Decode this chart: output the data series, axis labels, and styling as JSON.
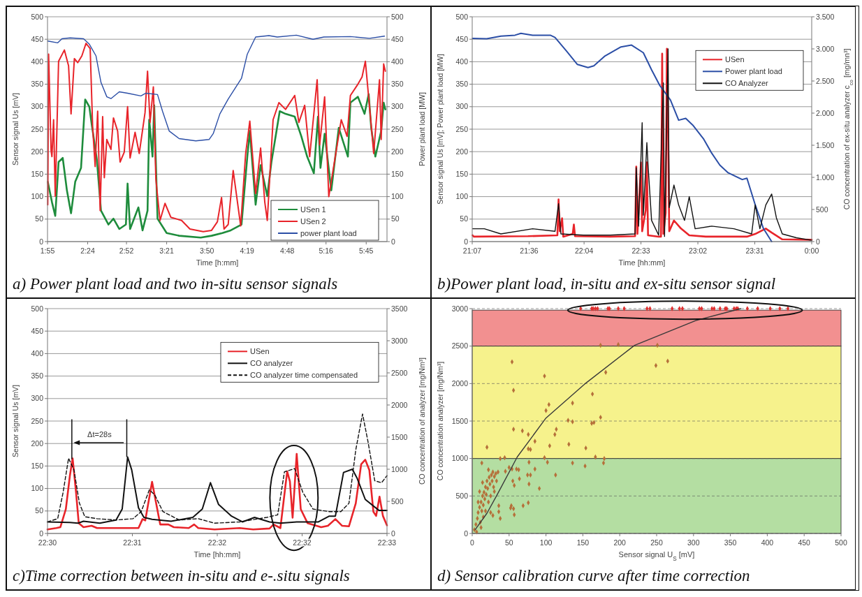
{
  "chart_data": [
    {
      "type": "line",
      "title": "a) Power plant load and two in-situ sensor signals",
      "xlabel": "Time [h:mm]",
      "ylabel": "Sensor signal Us [mV]",
      "y2label": "Power plant load [MW]",
      "xlim": [
        1.9167,
        6.0
      ],
      "xticks": [
        {
          "value": 1.9167,
          "label": "1:55"
        },
        {
          "value": 2.4,
          "label": "2:24"
        },
        {
          "value": 2.8667,
          "label": "2:52"
        },
        {
          "value": 3.35,
          "label": "3:21"
        },
        {
          "value": 3.8333,
          "label": "3:50"
        },
        {
          "value": 4.3167,
          "label": "4:19"
        },
        {
          "value": 4.8,
          "label": "4:48"
        },
        {
          "value": 5.2667,
          "label": "5:16"
        },
        {
          "value": 5.75,
          "label": "5:45"
        }
      ],
      "ylim": [
        0,
        500
      ],
      "yticks": [
        0,
        50,
        100,
        150,
        200,
        250,
        300,
        350,
        400,
        450,
        500
      ],
      "y2lim": [
        0,
        500
      ],
      "y2ticks": [
        0,
        50,
        100,
        150,
        200,
        250,
        300,
        350,
        400,
        450,
        500
      ],
      "grid": "y",
      "legend": "bottom right",
      "series": [
        {
          "name": "USen 1",
          "color": "#1e8c3c",
          "x": [
            1.92,
            1.97,
            2.01,
            2.05,
            2.1,
            2.15,
            2.2,
            2.25,
            2.32,
            2.37,
            2.42,
            2.45,
            2.51,
            2.56,
            2.65,
            2.71,
            2.78,
            2.86,
            2.88,
            2.91,
            3.01,
            3.06,
            3.12,
            3.14,
            3.18,
            3.2,
            3.24,
            3.35,
            3.5,
            3.76,
            3.89,
            4.02,
            4.12,
            4.25,
            4.32,
            4.35,
            4.42,
            4.48,
            4.56,
            4.61,
            4.71,
            4.78,
            4.89,
            4.97,
            5.04,
            5.12,
            5.17,
            5.2,
            5.25,
            5.33,
            5.42,
            5.53,
            5.56,
            5.65,
            5.73,
            5.78,
            5.81,
            5.86,
            5.93,
            5.96,
            5.98
          ],
          "values": [
            133,
            88,
            57,
            177,
            186,
            114,
            63,
            133,
            164,
            316,
            300,
            259,
            183,
            69,
            38,
            51,
            28,
            38,
            129,
            28,
            76,
            25,
            69,
            271,
            189,
            303,
            51,
            19,
            13,
            9,
            13,
            19,
            25,
            38,
            189,
            246,
            82,
            170,
            101,
            177,
            290,
            284,
            278,
            234,
            189,
            152,
            278,
            164,
            240,
            114,
            253,
            189,
            309,
            322,
            284,
            328,
            253,
            189,
            246,
            309,
            294
          ]
        },
        {
          "name": "USen 2",
          "color": "#e8242a",
          "x": [
            1.92,
            1.93,
            1.96,
            1.97,
            1.99,
            2.01,
            2.05,
            2.12,
            2.17,
            2.2,
            2.24,
            2.28,
            2.33,
            2.38,
            2.43,
            2.46,
            2.49,
            2.52,
            2.55,
            2.58,
            2.6,
            2.63,
            2.68,
            2.71,
            2.76,
            2.79,
            2.84,
            2.88,
            2.91,
            2.97,
            3.02,
            3.09,
            3.12,
            3.15,
            3.19,
            3.22,
            3.27,
            3.33,
            3.4,
            3.53,
            3.63,
            3.79,
            3.89,
            3.96,
            4.01,
            4.04,
            4.09,
            4.15,
            4.24,
            4.3,
            4.35,
            4.42,
            4.48,
            4.53,
            4.56,
            4.63,
            4.7,
            4.78,
            4.89,
            4.94,
            5.01,
            5.07,
            5.16,
            5.19,
            5.25,
            5.3,
            5.45,
            5.52,
            5.56,
            5.65,
            5.7,
            5.74,
            5.81,
            5.84,
            5.91,
            5.93,
            5.96,
            5.98
          ],
          "values": [
            82,
            417,
            202,
            189,
            271,
            101,
            401,
            426,
            391,
            284,
            407,
            398,
            413,
            441,
            429,
            253,
            167,
            290,
            69,
            278,
            142,
            227,
            205,
            275,
            246,
            177,
            199,
            300,
            186,
            243,
            196,
            287,
            379,
            265,
            344,
            139,
            47,
            85,
            54,
            47,
            28,
            22,
            25,
            44,
            98,
            28,
            38,
            158,
            35,
            196,
            268,
            107,
            208,
            88,
            47,
            271,
            309,
            294,
            325,
            265,
            303,
            189,
            360,
            215,
            322,
            100,
            271,
            234,
            325,
            350,
            366,
            401,
            259,
            196,
            360,
            227,
            395,
            379
          ]
        },
        {
          "name": "power plant load",
          "color": "#2b4ea6",
          "axis": "y2",
          "x": [
            1.92,
            2.04,
            2.09,
            2.19,
            2.35,
            2.42,
            2.5,
            2.56,
            2.63,
            2.68,
            2.78,
            2.88,
            3.04,
            3.1,
            3.24,
            3.3,
            3.38,
            3.5,
            3.7,
            3.86,
            3.91,
            3.99,
            4.09,
            4.25,
            4.32,
            4.42,
            4.58,
            4.68,
            4.91,
            5.11,
            5.24,
            5.56,
            5.79,
            5.97
          ],
          "values": [
            446,
            442,
            451,
            453,
            451,
            439,
            413,
            354,
            322,
            318,
            333,
            330,
            324,
            330,
            327,
            290,
            246,
            229,
            224,
            227,
            240,
            284,
            317,
            363,
            417,
            455,
            458,
            455,
            459,
            450,
            455,
            456,
            452,
            457
          ]
        }
      ]
    },
    {
      "type": "line",
      "title": "b)Power plant load, in-situ and ex-situ sensor signal",
      "xlabel": "Time [hh:mm]",
      "ylabel": "Sensor signal Us [mV]; Power plant load [MW]",
      "y2label": "CO concentration of ex-situ analyzer c$_{co}$ [mg/mn³]",
      "xlim": [
        21.1167,
        24
      ],
      "xticks": [
        {
          "value": 21.1167,
          "label": "21:07"
        },
        {
          "value": 21.6,
          "label": "21:36"
        },
        {
          "value": 22.0667,
          "label": "22:04"
        },
        {
          "value": 22.55,
          "label": "22:33"
        },
        {
          "value": 23.0333,
          "label": "23:02"
        },
        {
          "value": 23.5167,
          "label": "23:31"
        },
        {
          "value": 24,
          "label": "0:00"
        }
      ],
      "ylim": [
        0,
        500
      ],
      "yticks": [
        0,
        50,
        100,
        150,
        200,
        250,
        300,
        350,
        400,
        450,
        500
      ],
      "y2lim": [
        0,
        3500
      ],
      "y2ticks": [
        0,
        500,
        {
          "value": 1000,
          "label": "1.000"
        },
        {
          "value": 1500,
          "label": "1.500"
        },
        {
          "value": 2000,
          "label": "2.000"
        },
        {
          "value": 2500,
          "label": "2.500"
        },
        {
          "value": 3000,
          "label": "3.000"
        },
        {
          "value": 3500,
          "label": "3.500"
        }
      ],
      "grid": "y",
      "legend": "top right",
      "series": [
        {
          "name": "USen",
          "color": "#e8242a",
          "x": [
            21.12,
            21.13,
            21.59,
            21.84,
            21.85,
            21.86,
            21.88,
            21.89,
            21.97,
            21.98,
            21.99,
            22.29,
            22.5,
            22.51,
            22.52,
            22.55,
            22.56,
            22.59,
            22.6,
            22.61,
            22.7,
            22.72,
            22.73,
            22.74,
            22.76,
            22.77,
            22.78,
            22.79,
            22.83,
            22.89,
            22.96,
            23.1,
            23.45,
            23.52,
            23.61,
            23.66,
            23.75,
            24.0
          ],
          "values": [
            14,
            11,
            12,
            14,
            94,
            23,
            52,
            11,
            17,
            38,
            12,
            11,
            12,
            167,
            17,
            176,
            23,
            70,
            176,
            14,
            11,
            11,
            418,
            17,
            64,
            429,
            253,
            23,
            47,
            29,
            14,
            11,
            11,
            17,
            29,
            20,
            5,
            4
          ]
        },
        {
          "name": "Power plant load",
          "color": "#2b4ea6",
          "x": [
            21.12,
            21.24,
            21.36,
            21.48,
            21.53,
            21.63,
            21.78,
            21.82,
            21.92,
            22.01,
            22.1,
            22.15,
            22.24,
            22.38,
            22.47,
            22.57,
            22.64,
            22.71,
            22.8,
            22.87,
            22.93,
            22.99,
            23.08,
            23.15,
            23.22,
            23.29,
            23.41,
            23.45,
            23.52,
            23.59,
            23.66
          ],
          "values": [
            452,
            451,
            457,
            459,
            463,
            459,
            459,
            454,
            423,
            394,
            387,
            391,
            412,
            433,
            437,
            420,
            382,
            347,
            315,
            270,
            274,
            259,
            229,
            197,
            170,
            153,
            138,
            141,
            82,
            29,
            0
          ]
        },
        {
          "name": "CO Analyzer",
          "color": "#111111",
          "axis": "y2",
          "x": [
            21.12,
            21.22,
            21.36,
            21.63,
            21.82,
            21.85,
            21.87,
            22.06,
            22.29,
            22.5,
            22.51,
            22.53,
            22.56,
            22.57,
            22.6,
            22.61,
            22.64,
            22.7,
            22.74,
            22.75,
            22.78,
            22.79,
            22.83,
            22.87,
            22.92,
            22.96,
            23.01,
            23.15,
            23.34,
            23.49,
            23.52,
            23.56,
            23.61,
            23.66,
            23.7,
            23.75,
            23.87,
            24.0
          ],
          "values": [
            200,
            200,
            120,
            200,
            160,
            590,
            120,
            100,
            100,
            120,
            1150,
            240,
            1850,
            410,
            1540,
            1190,
            330,
            100,
            2470,
            80,
            3000,
            530,
            880,
            570,
            330,
            700,
            200,
            240,
            200,
            120,
            570,
            200,
            570,
            740,
            370,
            120,
            60,
            20
          ]
        }
      ]
    },
    {
      "type": "line",
      "title": "c)Time correction between in-situ and e-.situ signals",
      "xlabel": "Time [hh:mm]",
      "ylabel": "Sensor signal Us [mV]",
      "y2label": "CO concentration of analyzer [mg/Nm³]",
      "xlim": [
        22.5,
        22.55
      ],
      "xticks": [
        {
          "value": 22.5,
          "label": "22:30"
        },
        {
          "value": 22.5125,
          "label": "22:31"
        },
        {
          "value": 22.525,
          "label": "22:32"
        },
        {
          "value": 22.5375,
          "label": "22:32"
        },
        {
          "value": 22.55,
          "label": "22:33"
        }
      ],
      "ylim": [
        0,
        500
      ],
      "yticks": [
        0,
        50,
        100,
        150,
        200,
        250,
        300,
        350,
        400,
        450,
        500
      ],
      "y2lim": [
        0,
        3500
      ],
      "y2ticks": [
        0,
        500,
        1000,
        1500,
        2000,
        2500,
        3000,
        3500
      ],
      "grid": "y",
      "legend": "top right",
      "annotations": [
        "Δt=28s"
      ],
      "series": [
        {
          "name": "USen",
          "color": "#e8242a",
          "x": [
            22.5,
            22.5013,
            22.5019,
            22.5027,
            22.5033,
            22.5037,
            22.5042,
            22.5046,
            22.5053,
            22.5065,
            22.5073,
            22.5134,
            22.514,
            22.5144,
            22.5154,
            22.516,
            22.5166,
            22.5178,
            22.5186,
            22.5208,
            22.5216,
            22.5222,
            22.5246,
            22.5283,
            22.5303,
            22.5327,
            22.5333,
            22.5343,
            22.5353,
            22.5357,
            22.5361,
            22.5367,
            22.5373,
            22.5383,
            22.5403,
            22.5413,
            22.5424,
            22.5434,
            22.5444,
            22.5454,
            22.5462,
            22.5468,
            22.5474,
            22.548,
            22.5484,
            22.5489,
            22.5494,
            22.55
          ],
          "values": [
            9,
            12,
            14,
            54,
            129,
            167,
            92,
            23,
            14,
            17,
            12,
            12,
            32,
            29,
            115,
            67,
            20,
            20,
            14,
            12,
            20,
            12,
            9,
            12,
            9,
            11,
            20,
            12,
            138,
            116,
            35,
            177,
            54,
            23,
            14,
            17,
            32,
            17,
            16,
            67,
            154,
            164,
            141,
            48,
            39,
            82,
            39,
            18
          ]
        },
        {
          "name": "CO analyzer",
          "color": "#111111",
          "axis": "y2",
          "x": [
            22.5,
            22.5033,
            22.5045,
            22.5053,
            22.5077,
            22.5101,
            22.511,
            22.5118,
            22.5124,
            22.5134,
            22.5142,
            22.5154,
            22.5182,
            22.5214,
            22.5228,
            22.524,
            22.5252,
            22.5271,
            22.5287,
            22.5305,
            22.5327,
            22.5343,
            22.5367,
            22.5399,
            22.5415,
            22.5424,
            22.5436,
            22.5449,
            22.5456,
            22.5468,
            22.5488,
            22.55
          ],
          "values": [
            180,
            170,
            160,
            190,
            160,
            210,
            380,
            1190,
            990,
            400,
            250,
            220,
            190,
            250,
            380,
            790,
            450,
            270,
            180,
            250,
            180,
            160,
            180,
            180,
            270,
            270,
            950,
            1000,
            860,
            530,
            360,
            360
          ]
        },
        {
          "name": "CO analyzer time compensated",
          "color": "#111111",
          "axis": "y2",
          "line_style": "dashed",
          "x": [
            22.5,
            22.5015,
            22.5023,
            22.5031,
            22.5039,
            22.5047,
            22.5055,
            22.5073,
            22.5101,
            22.5126,
            22.5138,
            22.515,
            22.5158,
            22.517,
            22.5194,
            22.5222,
            22.5246,
            22.5283,
            22.5323,
            22.5339,
            22.5349,
            22.5364,
            22.5376,
            22.5391,
            22.5415,
            22.5432,
            22.5444,
            22.5454,
            22.5464,
            22.5472,
            22.5482,
            22.5492,
            22.55
          ],
          "values": [
            180,
            230,
            640,
            1170,
            990,
            470,
            260,
            230,
            210,
            230,
            340,
            680,
            600,
            340,
            210,
            230,
            160,
            180,
            250,
            290,
            960,
            1010,
            640,
            380,
            340,
            340,
            470,
            1300,
            1860,
            1430,
            820,
            790,
            900
          ]
        }
      ]
    },
    {
      "type": "scatter",
      "title": "d) Sensor calibration curve after time correction",
      "xlabel": "Sensor signal U$_{S}$ [mV]",
      "ylabel": "CO concentration analyzer [mg/Nm³]",
      "xlim": [
        0,
        500
      ],
      "xticks": [
        0,
        50,
        100,
        150,
        200,
        250,
        300,
        350,
        400,
        450,
        500
      ],
      "ylim": [
        0,
        3000
      ],
      "yticks": [
        0,
        500,
        1000,
        1500,
        2000,
        2500,
        3000
      ],
      "grid": "y",
      "legend": false,
      "bands": [
        {
          "axis": "y",
          "from": 0,
          "to": 1000,
          "color": "#b4dea2"
        },
        {
          "axis": "y",
          "from": 1000,
          "to": 2500,
          "color": "#f6f28c"
        },
        {
          "axis": "y",
          "from": 2500,
          "to": 2980,
          "color": "#f29090"
        }
      ],
      "series": [
        {
          "color": "#b5703a",
          "marker": "diamond",
          "x": [
            54,
            56,
            98,
            56,
            68,
            76,
            85,
            100,
            104,
            112,
            114,
            105,
            76,
            79,
            130,
            136,
            136,
            131,
            154,
            163,
            162,
            165,
            174,
            181,
            167,
            179,
            178,
            153,
            136,
            102,
            98,
            77,
            249,
            265,
            174,
            198,
            251,
            20,
            13,
            44,
            38,
            85,
            75,
            79,
            113,
            91,
            77,
            57,
            64,
            55,
            69,
            76,
            56,
            52,
            53,
            57,
            38,
            36,
            54,
            60,
            63,
            45,
            50,
            3,
            5,
            7,
            8,
            10,
            11,
            12,
            13,
            14,
            15,
            16,
            17,
            18,
            19,
            20,
            21,
            22,
            23,
            24,
            25,
            26,
            27,
            28,
            29,
            30,
            32,
            33,
            35,
            22,
            14,
            10,
            8,
            18,
            25,
            15,
            12,
            6,
            30,
            36,
            28
          ],
          "values": [
            2290,
            1910,
            2100,
            1390,
            1370,
            1320,
            1230,
            1640,
            1720,
            1320,
            1390,
            1170,
            1130,
            1120,
            1510,
            1740,
            1490,
            1190,
            1140,
            1860,
            1470,
            1480,
            1550,
            2150,
            1020,
            1000,
            940,
            900,
            940,
            950,
            1010,
            950,
            2240,
            2300,
            2510,
            2520,
            2510,
            1150,
            940,
            1010,
            1000,
            860,
            780,
            780,
            780,
            600,
            660,
            640,
            730,
            700,
            370,
            410,
            330,
            340,
            370,
            250,
            200,
            370,
            860,
            860,
            850,
            830,
            880,
            50,
            120,
            200,
            280,
            350,
            150,
            420,
            300,
            500,
            380,
            550,
            460,
            620,
            520,
            700,
            600,
            420,
            750,
            660,
            500,
            780,
            700,
            820,
            620,
            760,
            800,
            700,
            820,
            850,
            680,
            560,
            420,
            300,
            280,
            220,
            80,
            20,
            560,
            290,
            240
          ]
        },
        {
          "color": "#e03030",
          "marker": "diamond",
          "x": [
            147,
            162,
            164,
            167,
            170,
            184,
            186,
            198,
            206,
            237,
            241,
            271,
            281,
            285,
            308,
            311,
            325,
            328,
            336,
            343,
            345,
            355,
            358,
            360,
            373,
            387,
            404,
            417,
            428
          ],
          "values": [
            3000,
            3000,
            3000,
            3000,
            3000,
            3000,
            3000,
            3000,
            3000,
            3000,
            3000,
            3000,
            3000,
            3000,
            3000,
            3000,
            3000,
            3000,
            3000,
            3000,
            3000,
            3000,
            3000,
            3000,
            3000,
            3000,
            3000,
            3000,
            3000
          ]
        },
        {
          "type": "line",
          "color": "#3a3a3a",
          "x": [
            4,
            20,
            34,
            61,
            100,
            152,
            220,
            303,
            364
          ],
          "values": [
            50,
            270,
            520,
            1020,
            1540,
            1990,
            2510,
            2840,
            3000
          ]
        }
      ]
    }
  ]
}
